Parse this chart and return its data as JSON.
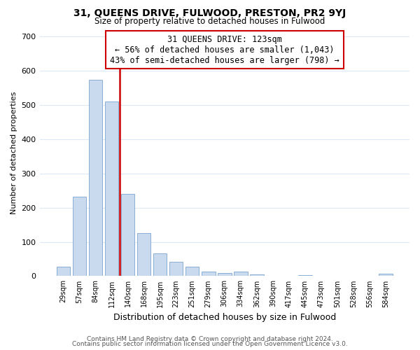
{
  "title": "31, QUEENS DRIVE, FULWOOD, PRESTON, PR2 9YJ",
  "subtitle": "Size of property relative to detached houses in Fulwood",
  "xlabel": "Distribution of detached houses by size in Fulwood",
  "ylabel": "Number of detached properties",
  "bar_labels": [
    "29sqm",
    "57sqm",
    "84sqm",
    "112sqm",
    "140sqm",
    "168sqm",
    "195sqm",
    "223sqm",
    "251sqm",
    "279sqm",
    "306sqm",
    "334sqm",
    "362sqm",
    "390sqm",
    "417sqm",
    "445sqm",
    "473sqm",
    "501sqm",
    "528sqm",
    "556sqm",
    "584sqm"
  ],
  "bar_values": [
    28,
    233,
    573,
    510,
    240,
    125,
    67,
    42,
    27,
    14,
    9,
    14,
    5,
    0,
    0,
    2,
    0,
    0,
    0,
    0,
    6
  ],
  "bar_color": "#c9d9ee",
  "bar_edge_color": "#8aafd4",
  "vline_x": 3.5,
  "vline_color": "#cc0000",
  "annotation_text": "31 QUEENS DRIVE: 123sqm\n← 56% of detached houses are smaller (1,043)\n43% of semi-detached houses are larger (798) →",
  "annotation_box_color": "#ffffff",
  "annotation_box_edge": "#cc0000",
  "ylim": [
    0,
    720
  ],
  "yticks": [
    0,
    100,
    200,
    300,
    400,
    500,
    600,
    700
  ],
  "footer_line1": "Contains HM Land Registry data © Crown copyright and database right 2024.",
  "footer_line2": "Contains public sector information licensed under the Open Government Licence v3.0.",
  "bg_color": "#ffffff",
  "grid_color": "#dce8f5"
}
